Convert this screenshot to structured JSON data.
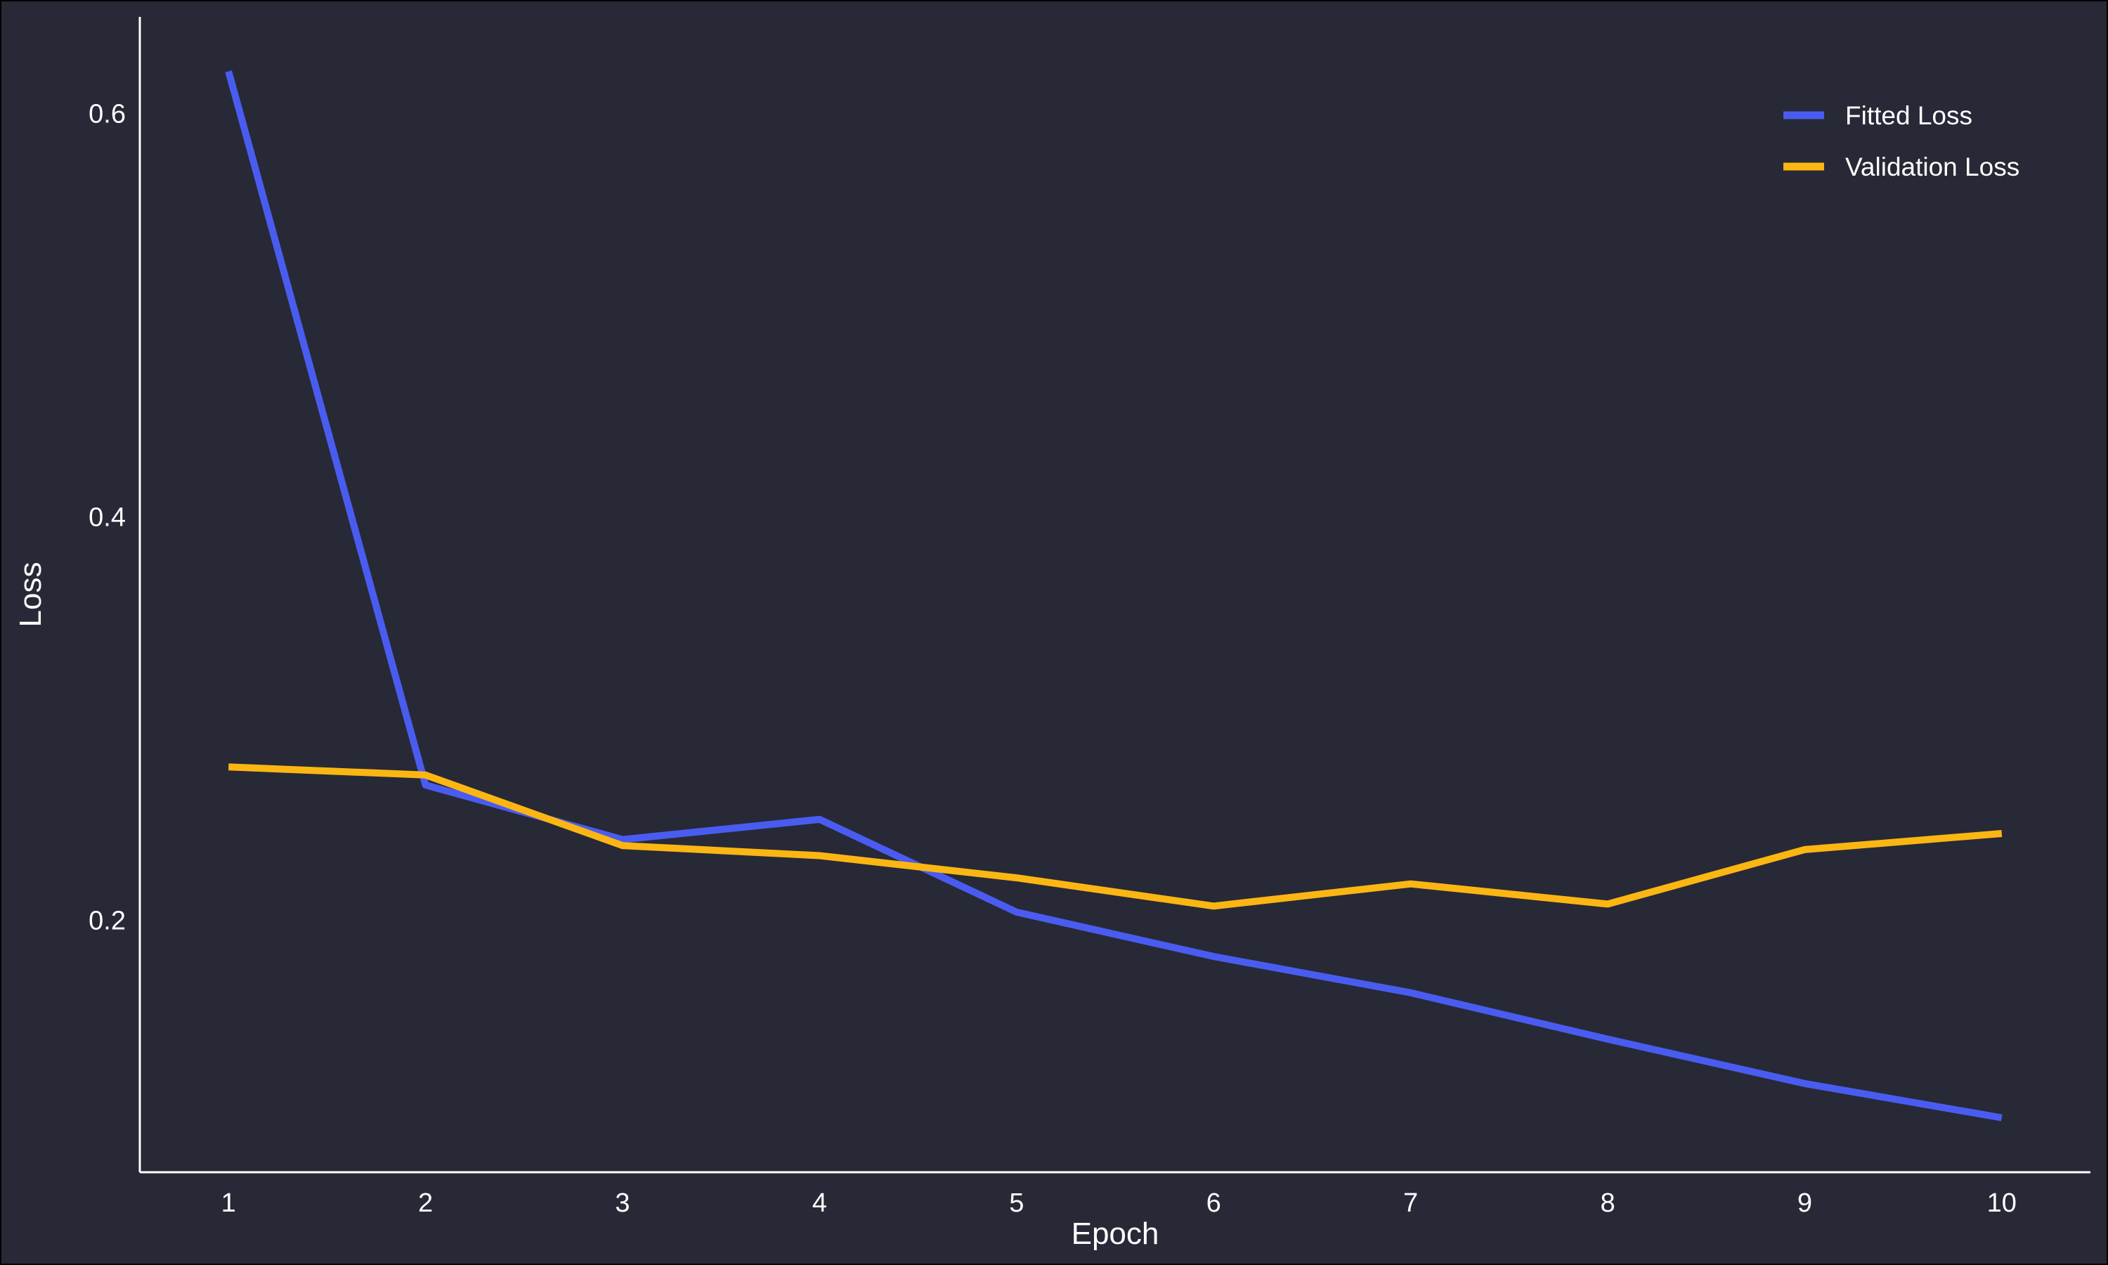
{
  "chart_data": {
    "type": "line",
    "title": "",
    "xlabel": "Epoch",
    "ylabel": "Loss",
    "x": [
      1,
      2,
      3,
      4,
      5,
      6,
      7,
      8,
      9,
      10
    ],
    "xticks": [
      "1",
      "2",
      "3",
      "4",
      "5",
      "6",
      "7",
      "8",
      "9",
      "10"
    ],
    "xlim": [
      0.55,
      10.45
    ],
    "yticks": [
      0.2,
      0.4,
      0.6
    ],
    "ytick_labels": [
      "0.2",
      "0.4",
      "0.6"
    ],
    "ylim": [
      0.075,
      0.648
    ],
    "grid": false,
    "legend_position": "top-right",
    "series": [
      {
        "name": "Fitted Loss",
        "color": "#4a5cf0",
        "values": [
          0.621,
          0.267,
          0.24,
          0.25,
          0.204,
          0.182,
          0.164,
          0.141,
          0.119,
          0.102
        ]
      },
      {
        "name": "Validation Loss",
        "color": "#fbb614",
        "values": [
          0.276,
          0.272,
          0.237,
          0.232,
          0.221,
          0.207,
          0.218,
          0.208,
          0.235,
          0.243
        ]
      }
    ]
  },
  "colors": {
    "background": "#272936",
    "axis": "#ffffff",
    "text": "#ffffff"
  }
}
